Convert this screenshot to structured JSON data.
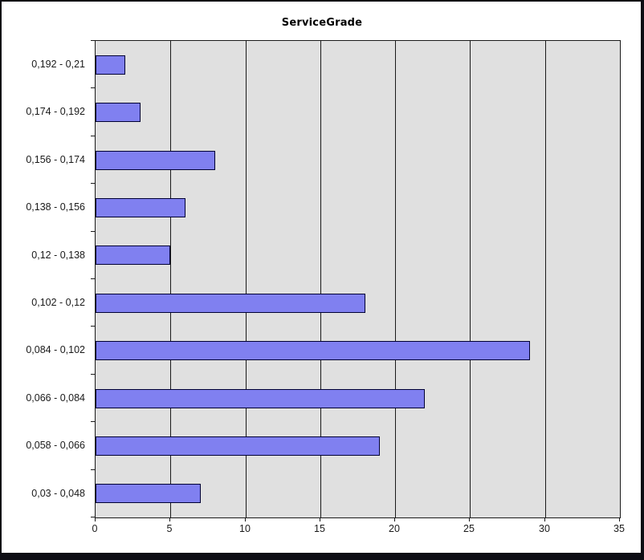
{
  "title": "ServiceGrade",
  "chart_data": {
    "type": "bar",
    "orientation": "horizontal",
    "title": "ServiceGrade",
    "categories": [
      "0,192 - 0,21",
      "0,174 - 0,192",
      "0,156 - 0,174",
      "0,138 - 0,156",
      "0,12 - 0,138",
      "0,102 - 0,12",
      "0,084 - 0,102",
      "0,066 - 0,084",
      "0,058 - 0,066",
      "0,03 - 0,048"
    ],
    "values": [
      2,
      3,
      8,
      6,
      5,
      18,
      29,
      22,
      19,
      7
    ],
    "xlabel": "",
    "ylabel": "",
    "xlim": [
      0,
      35
    ],
    "xticks": [
      0,
      5,
      10,
      15,
      20,
      25,
      30,
      35
    ],
    "grid": true,
    "legend": "none",
    "colors": {
      "bar_fill": "#8080f0",
      "bar_border": "#000033",
      "plot_background": "#e0e0e0",
      "canvas_background": "#ffffff",
      "frame": "#0d0d14",
      "grid_line": "#1a1a1a",
      "text": "#1a1a1a"
    }
  }
}
